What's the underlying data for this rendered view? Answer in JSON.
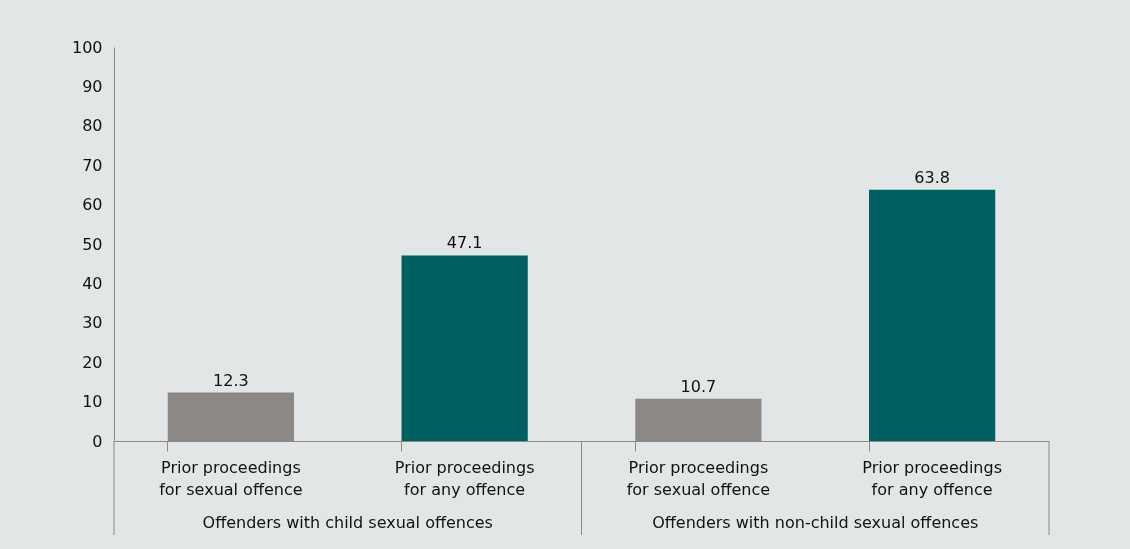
{
  "chart_data": {
    "type": "bar",
    "categories": [
      "Prior proceedings for sexual offence",
      "Prior proceedings for any offence",
      "Prior proceedings for sexual offence",
      "Prior proceedings for any offence"
    ],
    "values": [
      12.3,
      47.1,
      10.7,
      63.8
    ],
    "colors": [
      "#8c8886",
      "#005f60",
      "#8c8886",
      "#005f60"
    ],
    "ylim": [
      0,
      100
    ],
    "yticks": [
      0,
      10,
      20,
      30,
      40,
      50,
      60,
      70,
      80,
      90,
      100
    ],
    "data_labels": true,
    "grid": false,
    "annotations": [
      "Offenders with child sexual offences",
      "Offenders with non-child sexual offences"
    ]
  }
}
